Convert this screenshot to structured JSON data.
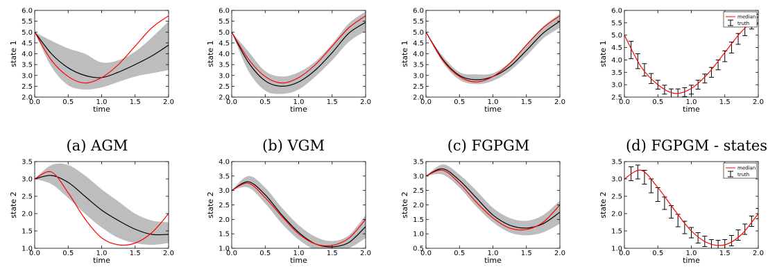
{
  "captions": [
    "(a) AGM",
    "(b) VGM",
    "(c) FGPGM",
    "(d) FGPGM - states"
  ],
  "colors": {
    "median": "#ff0000",
    "mean": "#000000",
    "band": "#bdbdbd",
    "truth": "#000000"
  },
  "chart_data": [
    {
      "type": "line",
      "panel": "a-state1",
      "xlabel": "time",
      "ylabel": "state 1",
      "xlim": [
        0,
        2
      ],
      "ylim": [
        2.0,
        6.0
      ],
      "xticks": [
        "0.0",
        "0.5",
        "1.0",
        "1.5",
        "2.0"
      ],
      "yticks": [
        "2.0",
        "2.5",
        "3.0",
        "3.5",
        "4.0",
        "4.5",
        "5.0",
        "5.5",
        "6.0"
      ],
      "x": [
        0,
        0.25,
        0.5,
        0.75,
        1.0,
        1.25,
        1.5,
        1.75,
        2.0
      ],
      "truth": [
        5.0,
        3.7,
        2.95,
        2.65,
        2.9,
        3.5,
        4.35,
        5.2,
        5.75
      ],
      "mean": [
        5.0,
        4.0,
        3.35,
        3.0,
        2.9,
        3.15,
        3.5,
        3.9,
        4.4
      ],
      "band_low": [
        5.0,
        3.4,
        2.55,
        2.35,
        2.45,
        2.7,
        2.95,
        3.1,
        3.25
      ],
      "band_high": [
        5.0,
        4.6,
        4.25,
        4.0,
        3.6,
        3.7,
        4.1,
        4.75,
        5.5
      ]
    },
    {
      "type": "line",
      "panel": "b-state1",
      "xlabel": "time",
      "ylabel": "state 1",
      "xlim": [
        0,
        2
      ],
      "ylim": [
        2.0,
        6.0
      ],
      "xticks": [
        "0.0",
        "0.5",
        "1.0",
        "1.5",
        "2.0"
      ],
      "yticks": [
        "2.0",
        "2.5",
        "3.0",
        "3.5",
        "4.0",
        "4.5",
        "5.0",
        "5.5",
        "6.0"
      ],
      "x": [
        0,
        0.25,
        0.5,
        0.75,
        1.0,
        1.25,
        1.5,
        1.75,
        2.0
      ],
      "truth": [
        5.0,
        3.75,
        2.95,
        2.65,
        2.9,
        3.5,
        4.35,
        5.2,
        5.75
      ],
      "mean": [
        5.0,
        3.6,
        2.75,
        2.5,
        2.7,
        3.25,
        4.05,
        4.95,
        5.45
      ],
      "band_low": [
        5.0,
        3.2,
        2.3,
        2.15,
        2.35,
        2.95,
        3.7,
        4.55,
        5.05
      ],
      "band_high": [
        5.0,
        4.1,
        3.2,
        2.95,
        3.15,
        3.65,
        4.45,
        5.4,
        5.95
      ]
    },
    {
      "type": "line",
      "panel": "c-state1",
      "xlabel": "time",
      "ylabel": "state 1",
      "xlim": [
        0,
        2
      ],
      "ylim": [
        2.0,
        6.0
      ],
      "xticks": [
        "0.0",
        "0.5",
        "1.0",
        "1.5",
        "2.0"
      ],
      "yticks": [
        "2.0",
        "2.5",
        "3.0",
        "3.5",
        "4.0",
        "4.5",
        "5.0",
        "5.5",
        "6.0"
      ],
      "x": [
        0,
        0.25,
        0.5,
        0.75,
        1.0,
        1.25,
        1.5,
        1.75,
        2.0
      ],
      "truth": [
        5.0,
        3.7,
        2.95,
        2.7,
        2.95,
        3.55,
        4.4,
        5.2,
        5.75
      ],
      "mean": [
        5.0,
        3.75,
        3.0,
        2.8,
        2.95,
        3.4,
        4.15,
        4.95,
        5.5
      ],
      "band_low": [
        5.0,
        3.6,
        2.8,
        2.6,
        2.75,
        3.2,
        3.9,
        4.7,
        5.2
      ],
      "band_high": [
        5.0,
        3.9,
        3.15,
        3.05,
        3.1,
        3.6,
        4.45,
        5.25,
        5.85
      ]
    },
    {
      "type": "line",
      "panel": "d-state1",
      "xlabel": "time",
      "ylabel": "state 1",
      "xlim": [
        0,
        2
      ],
      "ylim": [
        2.5,
        6.0
      ],
      "xticks": [
        "0.0",
        "0.5",
        "1.0",
        "1.5",
        "2.0"
      ],
      "yticks": [
        "2.5",
        "3.0",
        "3.5",
        "4.0",
        "4.5",
        "5.0",
        "5.5",
        "6.0"
      ],
      "x": [
        0,
        0.25,
        0.5,
        0.75,
        1.0,
        1.25,
        1.5,
        1.75,
        2.0
      ],
      "truth": [
        5.0,
        3.72,
        3.0,
        2.65,
        2.85,
        3.45,
        4.3,
        5.15,
        5.75
      ],
      "legend": [
        "median",
        "truth"
      ],
      "error_bars": {
        "x": [
          0.1,
          0.2,
          0.3,
          0.4,
          0.5,
          0.6,
          0.7,
          0.8,
          0.9,
          1.0,
          1.1,
          1.2,
          1.3,
          1.4,
          1.5,
          1.6,
          1.7,
          1.8,
          1.9,
          2.0
        ],
        "y": [
          4.4,
          3.95,
          3.6,
          3.25,
          3.0,
          2.8,
          2.65,
          2.65,
          2.7,
          2.8,
          3.0,
          3.25,
          3.5,
          3.8,
          4.15,
          4.5,
          4.85,
          5.2,
          5.45,
          5.65
        ],
        "err": [
          0.35,
          0.3,
          0.25,
          0.2,
          0.18,
          0.18,
          0.18,
          0.18,
          0.18,
          0.18,
          0.18,
          0.18,
          0.2,
          0.2,
          0.22,
          0.22,
          0.22,
          0.22,
          0.2,
          0.2
        ]
      }
    },
    {
      "type": "line",
      "panel": "a-state2",
      "xlabel": "time",
      "ylabel": "state 2",
      "xlim": [
        0,
        2
      ],
      "ylim": [
        1.0,
        3.5
      ],
      "xticks": [
        "0.0",
        "0.5",
        "1.0",
        "1.5",
        "2.0"
      ],
      "yticks": [
        "1.0",
        "1.5",
        "2.0",
        "2.5",
        "3.0",
        "3.5"
      ],
      "x": [
        0,
        0.25,
        0.5,
        0.75,
        1.0,
        1.25,
        1.5,
        1.75,
        2.0
      ],
      "truth": [
        3.0,
        3.2,
        2.6,
        1.85,
        1.3,
        1.1,
        1.15,
        1.45,
        2.0
      ],
      "mean": [
        3.0,
        3.1,
        2.9,
        2.5,
        2.1,
        1.8,
        1.55,
        1.4,
        1.4
      ],
      "band_low": [
        3.0,
        2.85,
        2.45,
        2.0,
        1.6,
        1.3,
        1.15,
        1.1,
        1.15
      ],
      "band_high": [
        3.0,
        3.4,
        3.4,
        3.1,
        2.7,
        2.35,
        2.0,
        1.8,
        1.75
      ]
    },
    {
      "type": "line",
      "panel": "b-state2",
      "xlabel": "time",
      "ylabel": "state 2",
      "xlim": [
        0,
        2
      ],
      "ylim": [
        1.0,
        4.0
      ],
      "xticks": [
        "0.0",
        "0.5",
        "1.0",
        "1.5",
        "2.0"
      ],
      "yticks": [
        "1.0",
        "1.5",
        "2.0",
        "2.5",
        "3.0",
        "3.5",
        "4.0"
      ],
      "x": [
        0,
        0.25,
        0.5,
        0.75,
        1.0,
        1.25,
        1.5,
        1.75,
        2.0
      ],
      "truth": [
        3.0,
        3.25,
        2.75,
        2.1,
        1.5,
        1.15,
        1.1,
        1.35,
        2.0
      ],
      "mean": [
        3.0,
        3.3,
        2.85,
        2.15,
        1.55,
        1.15,
        1.05,
        1.2,
        1.75
      ],
      "band_low": [
        3.0,
        3.1,
        2.55,
        1.85,
        1.3,
        0.95,
        0.9,
        1.0,
        1.35
      ],
      "band_high": [
        3.0,
        3.5,
        3.1,
        2.4,
        1.8,
        1.4,
        1.25,
        1.45,
        2.15
      ]
    },
    {
      "type": "line",
      "panel": "c-state2",
      "xlabel": "time",
      "ylabel": "state 2",
      "xlim": [
        0,
        2
      ],
      "ylim": [
        0.5,
        3.5
      ],
      "xticks": [
        "0.0",
        "0.5",
        "1.0",
        "1.5",
        "2.0"
      ],
      "yticks": [
        "0.5",
        "1.0",
        "1.5",
        "2.0",
        "2.5",
        "3.0",
        "3.5"
      ],
      "x": [
        0,
        0.25,
        0.5,
        0.75,
        1.0,
        1.25,
        1.5,
        1.75,
        2.0
      ],
      "truth": [
        3.0,
        3.2,
        2.75,
        2.1,
        1.55,
        1.2,
        1.15,
        1.4,
        2.0
      ],
      "mean": [
        3.0,
        3.25,
        2.85,
        2.25,
        1.65,
        1.3,
        1.2,
        1.35,
        1.75
      ],
      "band_low": [
        3.0,
        3.05,
        2.6,
        1.95,
        1.4,
        1.05,
        0.95,
        1.05,
        1.35
      ],
      "band_high": [
        3.0,
        3.4,
        3.05,
        2.5,
        1.9,
        1.55,
        1.45,
        1.65,
        2.15
      ]
    },
    {
      "type": "line",
      "panel": "d-state2",
      "xlabel": "time",
      "ylabel": "state 2",
      "xlim": [
        0,
        2
      ],
      "ylim": [
        1.0,
        3.5
      ],
      "xticks": [
        "0.0",
        "0.5",
        "1.0",
        "1.5",
        "2.0"
      ],
      "yticks": [
        "1.0",
        "1.5",
        "2.0",
        "2.5",
        "3.0",
        "3.5"
      ],
      "x": [
        0,
        0.25,
        0.5,
        0.75,
        1.0,
        1.25,
        1.5,
        1.75,
        2.0
      ],
      "truth": [
        3.0,
        3.25,
        2.75,
        2.1,
        1.5,
        1.15,
        1.1,
        1.4,
        2.0
      ],
      "legend": [
        "median",
        "truth"
      ],
      "error_bars": {
        "x": [
          0.1,
          0.2,
          0.3,
          0.4,
          0.5,
          0.6,
          0.7,
          0.8,
          0.9,
          1.0,
          1.1,
          1.2,
          1.3,
          1.4,
          1.5,
          1.6,
          1.7,
          1.8,
          1.9,
          2.0
        ],
        "y": [
          3.15,
          3.2,
          3.05,
          2.8,
          2.55,
          2.3,
          2.05,
          1.8,
          1.6,
          1.45,
          1.3,
          1.2,
          1.12,
          1.1,
          1.12,
          1.22,
          1.38,
          1.55,
          1.78,
          2.0
        ],
        "err": [
          0.2,
          0.2,
          0.2,
          0.2,
          0.2,
          0.18,
          0.18,
          0.18,
          0.18,
          0.15,
          0.15,
          0.15,
          0.13,
          0.13,
          0.13,
          0.15,
          0.15,
          0.15,
          0.15,
          0.15
        ]
      }
    }
  ]
}
